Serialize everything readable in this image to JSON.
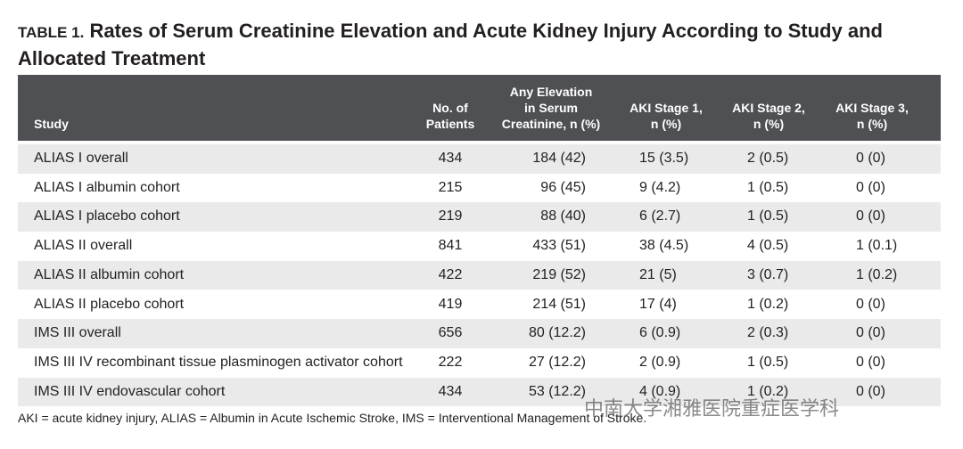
{
  "table": {
    "label": "TABLE 1.",
    "title": "Rates of Serum Creatinine Elevation and Acute Kidney Injury According to Study and Allocated Treatment",
    "header": [
      [
        "Study"
      ],
      [
        "No. of",
        "Patients"
      ],
      [
        "Any Elevation",
        "in Serum",
        "Creatinine, n (%)"
      ],
      [
        "AKI Stage 1,",
        "n (%)"
      ],
      [
        "AKI Stage 2,",
        "n (%)"
      ],
      [
        "AKI Stage 3,",
        "n (%)"
      ]
    ],
    "rows": [
      [
        "ALIAS I overall",
        "434",
        "184 (42)",
        "15 (3.5)",
        "2 (0.5)",
        "0 (0)"
      ],
      [
        "ALIAS I albumin cohort",
        "215",
        "96 (45)",
        "9 (4.2)",
        "1 (0.5)",
        "0 (0)"
      ],
      [
        "ALIAS I placebo cohort",
        "219",
        "88 (40)",
        "6 (2.7)",
        "1 (0.5)",
        "0 (0)"
      ],
      [
        "ALIAS II overall",
        "841",
        "433 (51)",
        "38 (4.5)",
        "4 (0.5)",
        "1 (0.1)"
      ],
      [
        "ALIAS II albumin cohort",
        "422",
        "219 (52)",
        "21 (5)",
        "3 (0.7)",
        "1 (0.2)"
      ],
      [
        "ALIAS II placebo cohort",
        "419",
        "214 (51)",
        "17 (4)",
        "1 (0.2)",
        "0 (0)"
      ],
      [
        "IMS III overall",
        "656",
        "80 (12.2)",
        "6 (0.9)",
        "2 (0.3)",
        "0 (0)"
      ],
      [
        "IMS III IV recombinant tissue plasminogen activator cohort",
        "222",
        "27 (12.2)",
        "2 (0.9)",
        "1 (0.5)",
        "0 (0)"
      ],
      [
        "IMS III IV endovascular cohort",
        "434",
        "53 (12.2)",
        "4 (0.9)",
        "1 (0.2)",
        "0 (0)"
      ]
    ],
    "footnote": "AKI = acute kidney injury, ALIAS = Albumin in Acute Ischemic Stroke, IMS = Interventional Management of Stroke.",
    "watermark": "中南大学湘雅医院重症医学科"
  }
}
